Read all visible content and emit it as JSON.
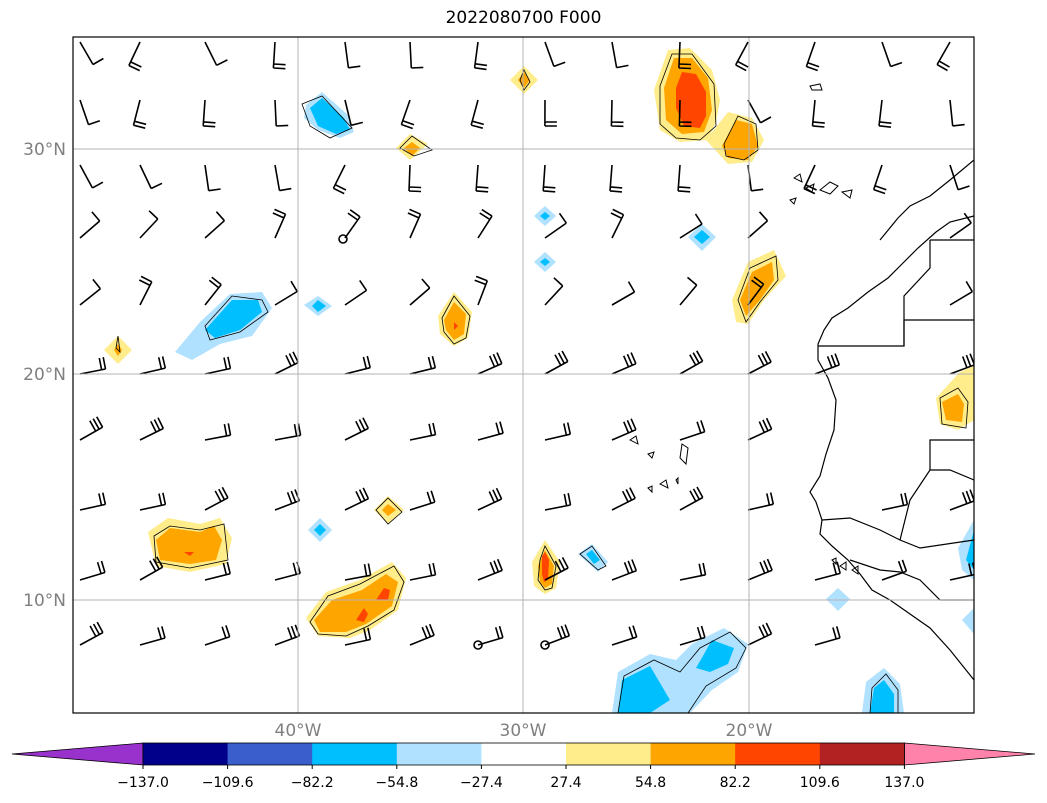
{
  "title": "2022080700 F000",
  "map": {
    "lon_range": [
      -50,
      -10
    ],
    "lat_range": [
      5,
      35
    ],
    "gridlines": true,
    "lat_labels": [
      {
        "lat": 30,
        "text": "30°N"
      },
      {
        "lat": 20,
        "text": "20°N"
      },
      {
        "lat": 10,
        "text": "10°N"
      }
    ],
    "lon_labels": [
      {
        "lon": -40,
        "text": "40°W"
      },
      {
        "lon": -30,
        "text": "30°W"
      },
      {
        "lon": -20,
        "text": "20°W"
      }
    ]
  },
  "colorbar": {
    "extend": "both",
    "levels": [
      "−137.0",
      "−109.6",
      "−82.2",
      "−54.8",
      "−27.4",
      "27.4",
      "54.8",
      "82.2",
      "109.6",
      "137.0"
    ],
    "colors": [
      "#9932cc",
      "#00008b",
      "#3a5fcd",
      "#00bfff",
      "#b0e2ff",
      "#ffffff",
      "#ffec8b",
      "#ffa500",
      "#ff4500",
      "#b22222",
      "#ff82ab"
    ]
  },
  "colors": {
    "light_blue": "#b0e2ff",
    "blue": "#00bfff",
    "yellow": "#ffec8b",
    "orange": "#ffa500",
    "red": "#ff4500",
    "gridline": "#b3b3b3",
    "coastline": "#000000"
  }
}
